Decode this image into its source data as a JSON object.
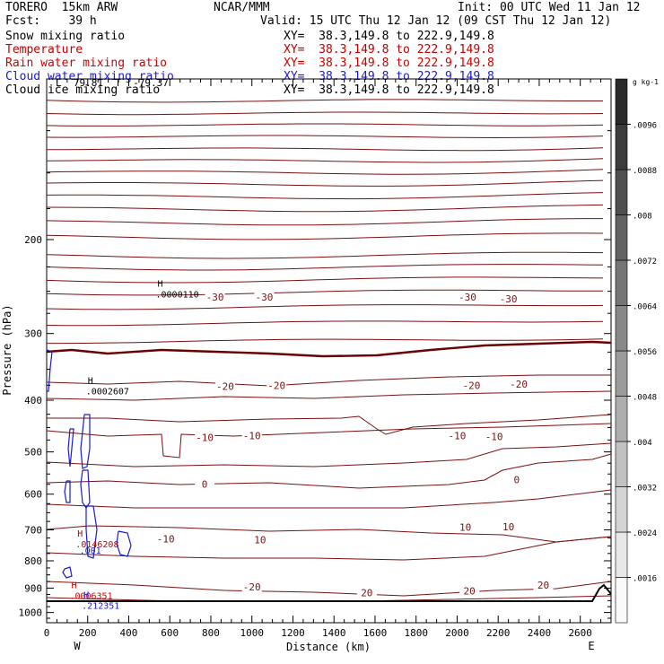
{
  "header": {
    "model": "TORERO  15km ARW",
    "center": "NCAR/MMM",
    "init": "Init: 00 UTC Wed 11 Jan 12",
    "fcst": "Fcst:    39 h",
    "valid": "Valid: 15 UTC Thu 12 Jan 12 (09 CST Thu 12 Jan 12)"
  },
  "fields": [
    {
      "name": "Snow mixing ratio",
      "xy": "XY=  38.3,149.8 to 222.9,149.8",
      "color": "#000000"
    },
    {
      "name": "Temperature",
      "xy": "XY=  38.3,149.8 to 222.9,149.8",
      "color": "#c00000"
    },
    {
      "name": "Rain water mixing ratio",
      "xy": "XY=  38.3,149.8 to 222.9,149.8",
      "color": "#d00000"
    },
    {
      "name": "Cloud water mixing ratio",
      "xy": "XY=  38.3,149.8 to 222.9,149.8",
      "color": "#1a1ad0"
    },
    {
      "name": "Cloud ice mixing ratio",
      "xy": "XY=  38.3,149.8 to 222.9,149.8",
      "color": "#000000"
    }
  ],
  "overlap_text": "L  79.81  T  -79.37",
  "chart_data": {
    "type": "cross-section",
    "xlabel": "Distance (km)",
    "ylabel": "Pressure (hPa)",
    "x_ticks": [
      0,
      200,
      400,
      600,
      800,
      1000,
      1200,
      1400,
      1600,
      1800,
      2000,
      2200,
      2400,
      2600
    ],
    "xlim": [
      0,
      2750
    ],
    "y_ticks": [
      200,
      300,
      400,
      500,
      600,
      700,
      800,
      900,
      1000
    ],
    "ylim": [
      1045,
      100
    ],
    "y_scale": "log",
    "endpoint_labels": {
      "left": "W",
      "right": "E"
    },
    "colorbar": {
      "unit": "g kg-1",
      "ticks": [
        ".0016",
        ".0024",
        ".0032",
        ".004",
        ".0048",
        ".0056",
        ".0064",
        ".0072",
        ".008",
        ".0088",
        ".0096"
      ]
    },
    "temperature_labels": [
      {
        "text": "-30",
        "x": 820,
        "p": 256
      },
      {
        "text": "-30",
        "x": 1060,
        "p": 256
      },
      {
        "text": "-30",
        "x": 2050,
        "p": 256
      },
      {
        "text": "-30",
        "x": 2250,
        "p": 258
      },
      {
        "text": "-20",
        "x": 870,
        "p": 377
      },
      {
        "text": "-20",
        "x": 1120,
        "p": 375
      },
      {
        "text": "-20",
        "x": 2070,
        "p": 375
      },
      {
        "text": "-20",
        "x": 2300,
        "p": 373
      },
      {
        "text": "-10",
        "x": 770,
        "p": 470
      },
      {
        "text": "-10",
        "x": 1000,
        "p": 466
      },
      {
        "text": "-10",
        "x": 2000,
        "p": 466
      },
      {
        "text": "-10",
        "x": 2180,
        "p": 468
      },
      {
        "text": "0",
        "x": 770,
        "p": 574
      },
      {
        "text": "0",
        "x": 2290,
        "p": 564
      },
      {
        "text": "10",
        "x": 2040,
        "p": 692
      },
      {
        "text": "10",
        "x": 2250,
        "p": 690
      },
      {
        "text": "-10",
        "x": 580,
        "p": 728
      },
      {
        "text": "10",
        "x": 1040,
        "p": 730
      },
      {
        "text": "20",
        "x": 1560,
        "p": 918
      },
      {
        "text": "20",
        "x": 2060,
        "p": 910
      },
      {
        "text": "20",
        "x": 2420,
        "p": 888
      },
      {
        "text": "-20",
        "x": 1000,
        "p": 895
      }
    ],
    "extrema": [
      {
        "mark": "H",
        "value": ".0000110",
        "x": 540,
        "p": 245,
        "color": "#000000"
      },
      {
        "mark": "H",
        "value": ".0002607",
        "x": 200,
        "p": 372,
        "color": "#000000"
      },
      {
        "mark": "H",
        "value": ".0146208",
        "x": 150,
        "p": 720,
        "color": "#c00000"
      },
      {
        "mark": ".001",
        "value": "",
        "x": 160,
        "p": 775,
        "color": "#1a1ad0"
      },
      {
        "mark": "H",
        "value": ".0006351",
        "x": 120,
        "p": 900,
        "color": "#d00000"
      },
      {
        "mark": "H",
        "value": ".212351",
        "x": 180,
        "p": 940,
        "color": "#1a1ad0"
      }
    ]
  }
}
